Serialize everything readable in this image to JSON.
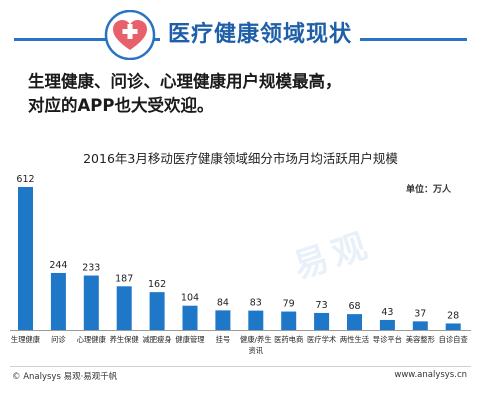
{
  "header": {
    "title": "医疗健康领域现状"
  },
  "headline": {
    "line1": "生理健康、问诊、心理健康用户规模最高，",
    "line2": "对应的APP也大受欢迎。"
  },
  "chart_data": {
    "type": "bar",
    "title": "2016年3月移动医疗健康领域细分市场月均活跃用户规模",
    "unit_label": "单位：万人",
    "categories": [
      "生理健康",
      "问诊",
      "心理健康",
      "养生保健",
      "减肥瘦身",
      "健康管理",
      "挂号",
      "健康/养生资讯",
      "医药电商",
      "医疗学术",
      "两性生活",
      "导诊平台",
      "美容整形",
      "自诊自查"
    ],
    "category_lines": [
      [
        "生理健康"
      ],
      [
        "问诊"
      ],
      [
        "心理健康"
      ],
      [
        "养生保健"
      ],
      [
        "减肥瘦身"
      ],
      [
        "健康管理"
      ],
      [
        "挂号"
      ],
      [
        "健康/养生",
        "资讯"
      ],
      [
        "医药电商"
      ],
      [
        "医疗学术"
      ],
      [
        "两性生活"
      ],
      [
        "导诊平台"
      ],
      [
        "美容整形"
      ],
      [
        "自诊自查"
      ]
    ],
    "values": [
      612,
      244,
      233,
      187,
      162,
      104,
      84,
      83,
      79,
      73,
      68,
      43,
      37,
      28
    ],
    "ylim": [
      0,
      612
    ],
    "grid": false,
    "bar_color": "#1f77c8"
  },
  "watermark": {
    "text": "Analysys 易观",
    "text_cn": "易观"
  },
  "footer": {
    "left": "© Analysys 易观·易观千帆",
    "right": "www.analysys.cn"
  },
  "colors": {
    "brand": "#1f5fa8",
    "heart": "#e8606b"
  }
}
